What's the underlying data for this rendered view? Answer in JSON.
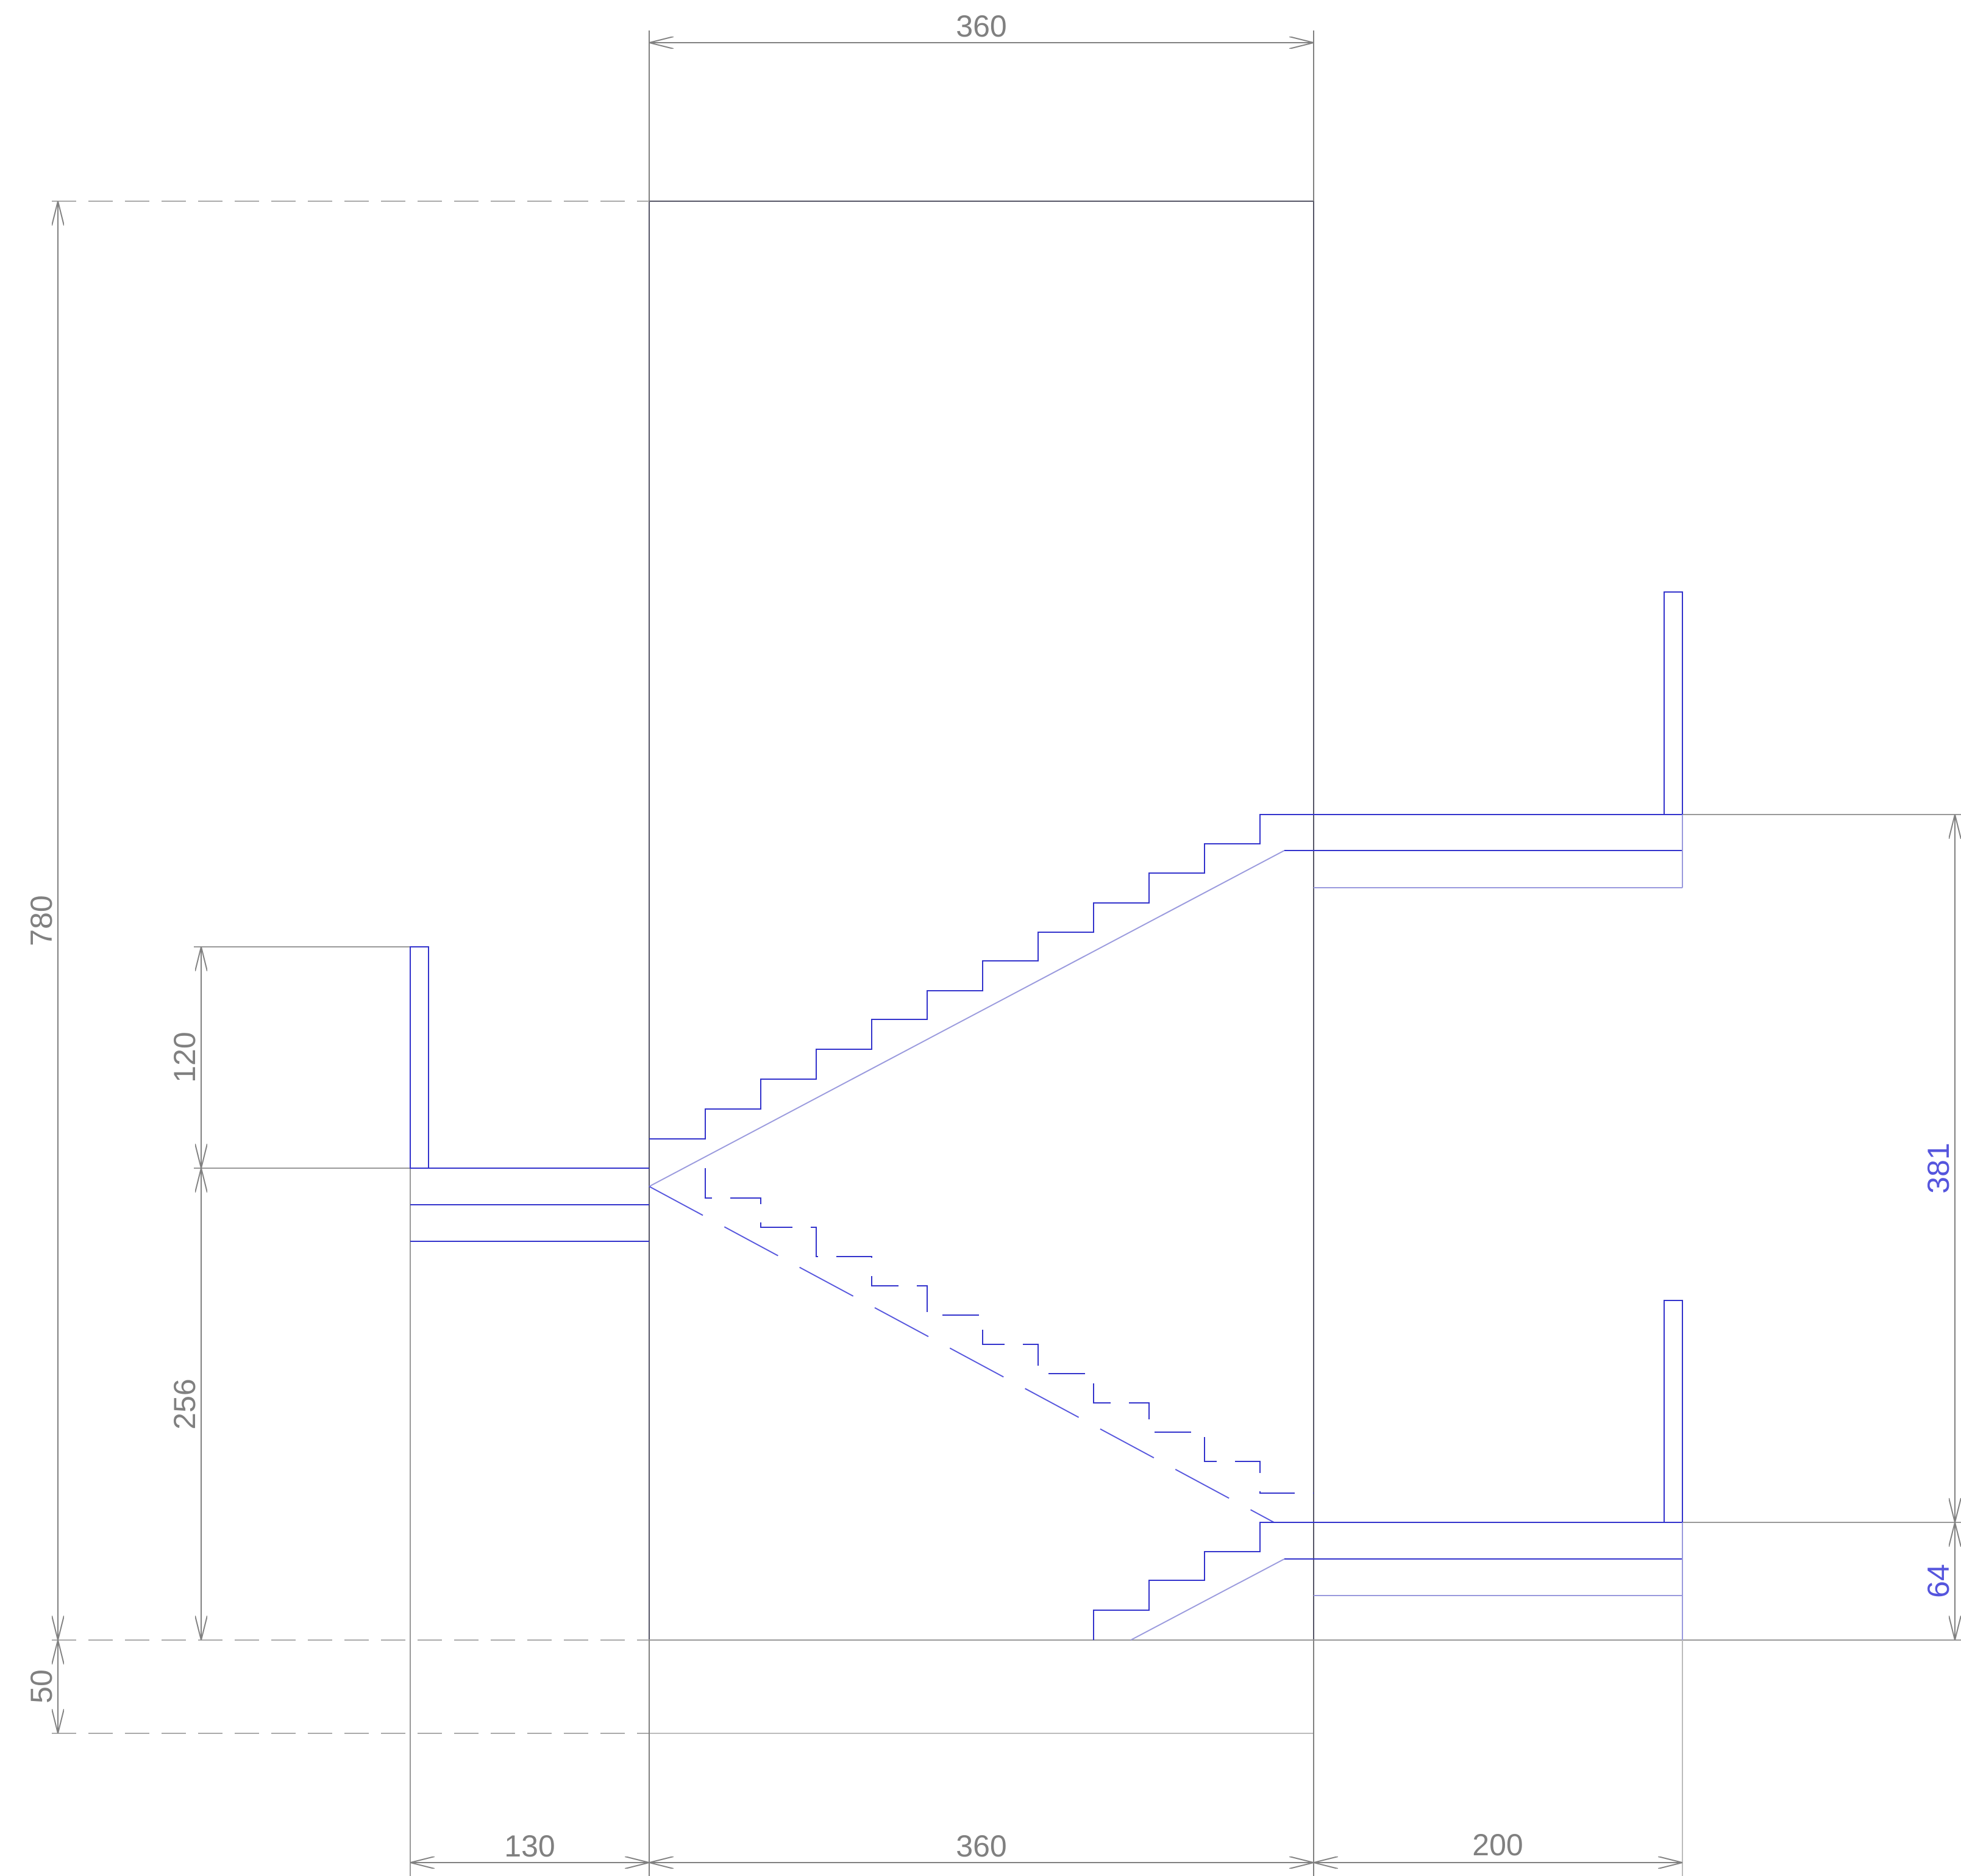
{
  "colors": {
    "dimension": "#808080",
    "outline": "#555566",
    "stair": "#3333cc",
    "stair_light": "#9999dd",
    "dimension_blue": "#5555dd"
  },
  "dimensions": {
    "top_width": "360",
    "total_height": "780",
    "rail_height": "120",
    "lower_height": "256",
    "offset_50": "50",
    "right_height_381": "381",
    "right_height_64": "64",
    "bottom_130": "130",
    "bottom_360": "360",
    "bottom_200": "200"
  }
}
